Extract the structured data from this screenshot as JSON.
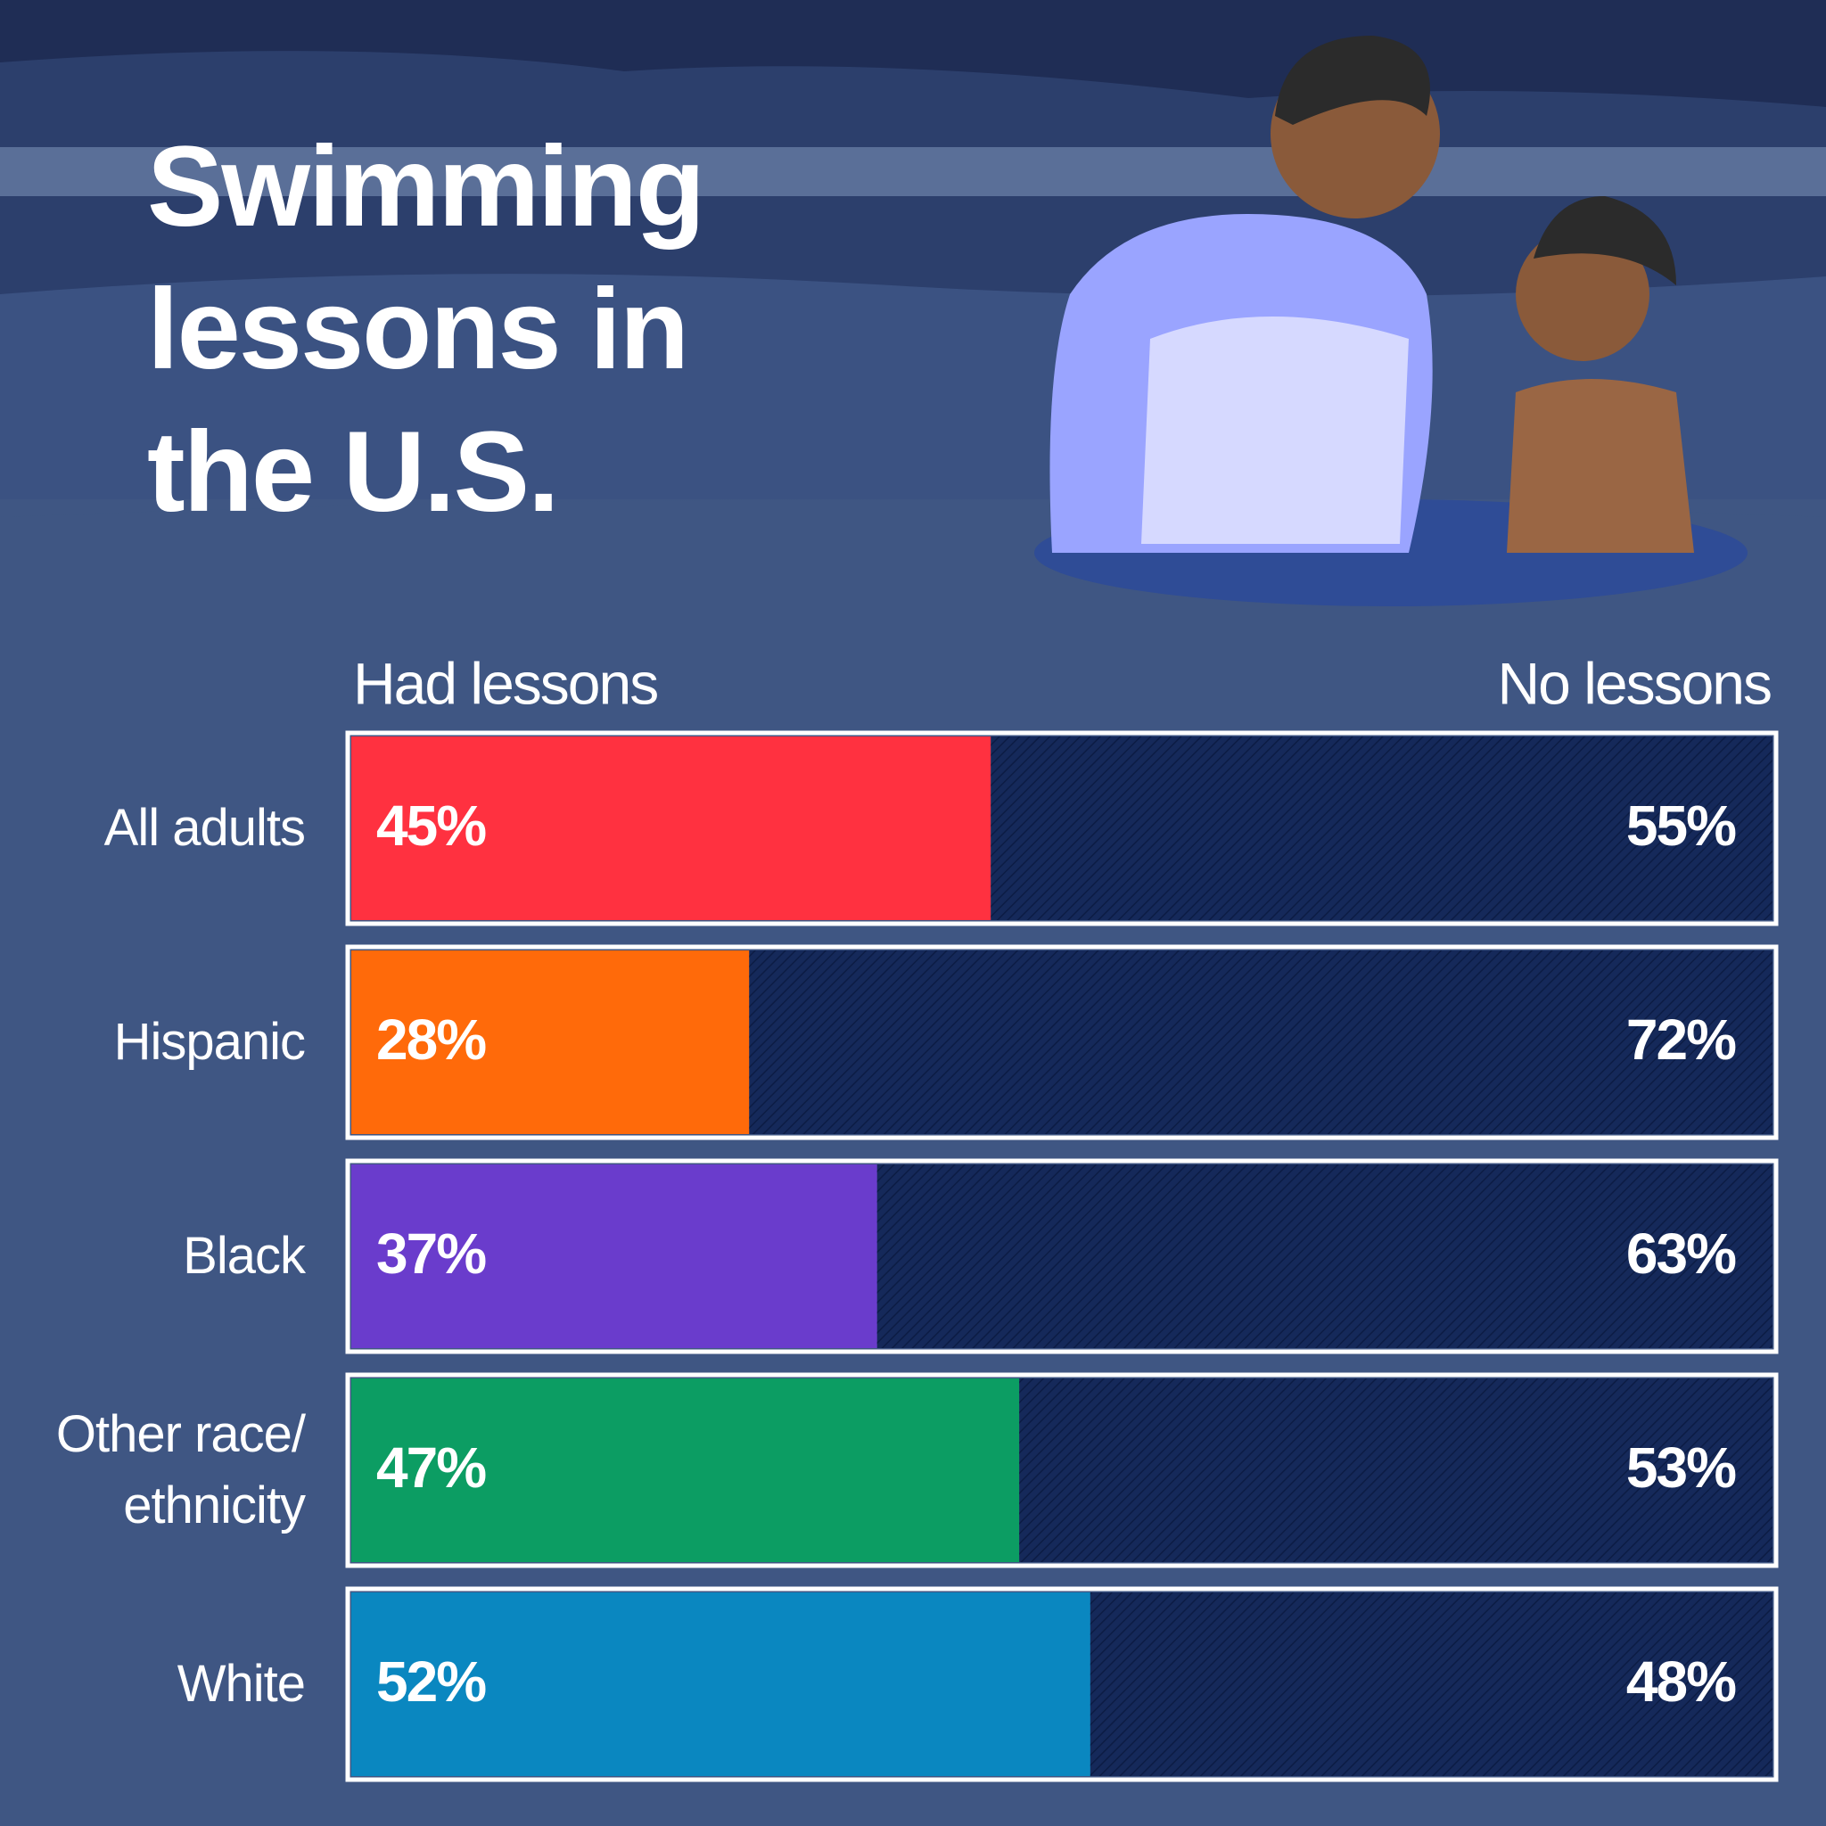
{
  "chart_data": {
    "type": "stacked-bar",
    "title": "Swimming lessons in the U.S.",
    "categories": [
      "All adults",
      "Hispanic",
      "Black",
      "Other race/ ethnicity",
      "White"
    ],
    "series": [
      {
        "name": "Had lessons",
        "colors": [
          "#ff3140",
          "#ff6a0a",
          "#6a3ccc",
          "#0c9d63",
          "#0a87c0"
        ],
        "values": [
          45,
          28,
          37,
          47,
          52
        ],
        "value_labels": [
          "45%",
          "28%",
          "37%",
          "47%",
          "52%"
        ]
      },
      {
        "name": "No lessons",
        "color": "#15295a",
        "values": [
          55,
          72,
          63,
          53,
          48
        ],
        "value_labels": [
          "55%",
          "72%",
          "63%",
          "53%",
          "48%"
        ]
      }
    ],
    "xlim": [
      0,
      100
    ]
  }
}
